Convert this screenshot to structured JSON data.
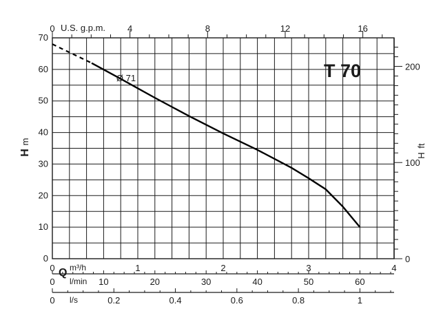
{
  "chart_data": {
    "type": "line",
    "title": "T 70",
    "curve_label": "Ø 71",
    "y_left": {
      "label_main": "H",
      "label_unit": "m",
      "ticks": [
        0,
        10,
        20,
        30,
        40,
        50,
        60,
        70
      ],
      "range": [
        0,
        70
      ]
    },
    "y_right": {
      "label_main": "H",
      "label_unit": "ft",
      "ticks": [
        0,
        100,
        200
      ]
    },
    "x_top": {
      "label": "U.S. g.p.m.",
      "ticks": [
        0,
        4,
        8,
        12,
        16
      ]
    },
    "x_m3h": {
      "label_main": "Q",
      "label_unit": "m³/h",
      "ticks": [
        0,
        1,
        2,
        3,
        4
      ],
      "range": [
        0,
        4
      ]
    },
    "x_lmin": {
      "label": "l/min",
      "ticks": [
        0,
        10,
        20,
        30,
        40,
        50,
        60
      ]
    },
    "x_ls": {
      "label": "l/s",
      "ticks": [
        0,
        0.2,
        0.4,
        0.6,
        0.8,
        1
      ]
    },
    "series": [
      {
        "name": "Ø 71",
        "dashed_x": [
          0,
          0.46
        ],
        "dashed_y": [
          68,
          62
        ],
        "x": [
          0.46,
          0.8,
          1.2,
          1.6,
          2.0,
          2.4,
          2.8,
          3.0,
          3.2,
          3.4,
          3.6
        ],
        "y": [
          62,
          57,
          51,
          45.2,
          39.7,
          34.5,
          28.8,
          25.5,
          22,
          16.5,
          10
        ]
      }
    ]
  }
}
